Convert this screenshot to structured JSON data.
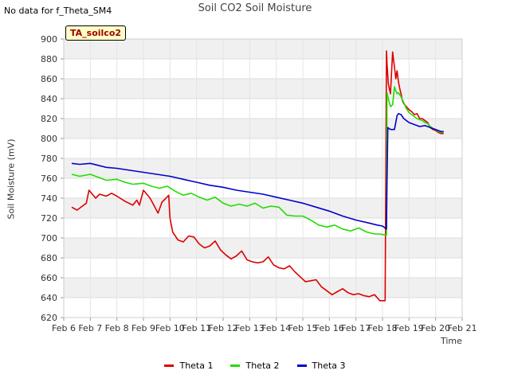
{
  "no_data_note": "No data for f_Theta_SM4",
  "badge_label": "TA_soilco2",
  "chart_data": {
    "type": "line",
    "title": "Soil CO2 Soil Moisture",
    "xlabel": "Time",
    "ylabel": "Soil Moisture (mV)",
    "ylim": [
      620,
      900
    ],
    "yticks": [
      620,
      640,
      660,
      680,
      700,
      720,
      740,
      760,
      780,
      800,
      820,
      840,
      860,
      880,
      900
    ],
    "xlim": [
      6,
      21
    ],
    "xticks": [
      6,
      7,
      8,
      9,
      10,
      11,
      12,
      13,
      14,
      15,
      16,
      17,
      18,
      19,
      20,
      21
    ],
    "xtick_labels": [
      "Feb 6",
      "Feb 7",
      "Feb 8",
      "Feb 9",
      "Feb 10",
      "Feb 11",
      "Feb 12",
      "Feb 13",
      "Feb 14",
      "Feb 15",
      "Feb 16",
      "Feb 17",
      "Feb 18",
      "Feb 19",
      "Feb 20",
      "Feb 21"
    ],
    "grid": true,
    "legend_position": "bottom",
    "series": [
      {
        "name": "Theta 1",
        "color": "#dd0000",
        "x": [
          6.3,
          6.5,
          6.8,
          6.85,
          6.95,
          7.2,
          7.35,
          7.6,
          7.8,
          8.0,
          8.3,
          8.6,
          8.75,
          8.85,
          9.0,
          9.25,
          9.45,
          9.55,
          9.7,
          9.85,
          9.95,
          10.0,
          10.1,
          10.3,
          10.5,
          10.7,
          10.9,
          11.1,
          11.3,
          11.5,
          11.7,
          11.9,
          12.1,
          12.3,
          12.5,
          12.7,
          12.9,
          13.1,
          13.3,
          13.5,
          13.7,
          13.9,
          14.1,
          14.3,
          14.5,
          14.7,
          14.9,
          15.1,
          15.3,
          15.5,
          15.7,
          15.9,
          16.1,
          16.3,
          16.5,
          16.7,
          16.9,
          17.1,
          17.3,
          17.5,
          17.7,
          17.9,
          18.1,
          18.15,
          18.17,
          18.22,
          18.3,
          18.38,
          18.45,
          18.5,
          18.55,
          18.6,
          18.65,
          18.7,
          18.75,
          18.8,
          18.9,
          19.0,
          19.1,
          19.2,
          19.3,
          19.4,
          19.5,
          19.6,
          19.7,
          19.8,
          19.9,
          20.0,
          20.1,
          20.2,
          20.3
        ],
        "y": [
          731,
          728,
          734,
          735,
          748,
          740,
          744,
          742,
          745,
          742,
          737,
          733,
          738,
          733,
          748,
          740,
          730,
          725,
          736,
          740,
          743,
          720,
          706,
          698,
          696,
          702,
          701,
          694,
          690,
          692,
          697,
          688,
          683,
          679,
          682,
          687,
          678,
          676,
          675,
          676,
          681,
          673,
          670,
          669,
          672,
          666,
          661,
          656,
          657,
          658,
          651,
          647,
          643,
          646,
          649,
          645,
          643,
          644,
          642,
          641,
          643,
          637,
          637,
          888,
          875,
          855,
          845,
          887,
          872,
          860,
          868,
          857,
          850,
          845,
          838,
          835,
          832,
          829,
          827,
          824,
          825,
          820,
          820,
          818,
          816,
          811,
          809,
          808,
          806,
          805,
          805
        ]
      },
      {
        "name": "Theta 2",
        "color": "#22dd00",
        "x": [
          6.3,
          6.6,
          7.0,
          7.3,
          7.6,
          8.0,
          8.3,
          8.6,
          9.0,
          9.3,
          9.6,
          9.9,
          10.2,
          10.5,
          10.8,
          11.1,
          11.4,
          11.7,
          12.0,
          12.3,
          12.6,
          12.9,
          13.2,
          13.5,
          13.8,
          14.1,
          14.4,
          14.7,
          15.0,
          15.3,
          15.6,
          15.9,
          16.2,
          16.5,
          16.8,
          17.1,
          17.4,
          17.7,
          17.9,
          18.1,
          18.15,
          18.17,
          18.22,
          18.3,
          18.38,
          18.45,
          18.5,
          18.55,
          18.6,
          18.7,
          18.8,
          18.9,
          19.0,
          19.1,
          19.2,
          19.3,
          19.4,
          19.5,
          19.6,
          19.7,
          19.8,
          19.9,
          20.0,
          20.1,
          20.2,
          20.3
        ],
        "y": [
          764,
          762,
          764,
          761,
          758,
          759,
          756,
          754,
          755,
          752,
          750,
          752,
          747,
          743,
          745,
          741,
          738,
          741,
          735,
          732,
          734,
          732,
          735,
          730,
          732,
          731,
          723,
          722,
          722,
          718,
          713,
          711,
          713,
          709,
          707,
          710,
          706,
          704,
          704,
          703,
          703,
          846,
          840,
          832,
          834,
          852,
          848,
          845,
          846,
          842,
          836,
          830,
          826,
          824,
          822,
          820,
          819,
          818,
          816,
          815,
          812,
          810,
          809,
          807,
          806,
          806
        ]
      },
      {
        "name": "Theta 3",
        "color": "#0000cc",
        "x": [
          6.3,
          6.6,
          7.0,
          7.3,
          7.6,
          8.0,
          8.5,
          9.0,
          9.5,
          10.0,
          10.5,
          11.0,
          11.5,
          12.0,
          12.5,
          13.0,
          13.5,
          14.0,
          14.5,
          15.0,
          15.5,
          16.0,
          16.5,
          17.0,
          17.5,
          17.8,
          18.0,
          18.1,
          18.15,
          18.17,
          18.2,
          18.25,
          18.3,
          18.4,
          18.45,
          18.55,
          18.6,
          18.7,
          18.8,
          18.9,
          19.0,
          19.2,
          19.4,
          19.6,
          19.8,
          20.0,
          20.1,
          20.2,
          20.3
        ],
        "y": [
          775,
          774,
          775,
          773,
          771,
          770,
          768,
          766,
          764,
          762,
          759,
          756,
          753,
          751,
          748,
          746,
          744,
          741,
          738,
          735,
          731,
          727,
          722,
          718,
          715,
          713,
          712,
          710,
          709,
          760,
          811,
          810,
          809,
          809,
          809,
          823,
          825,
          824,
          820,
          818,
          816,
          814,
          812,
          813,
          811,
          809,
          808,
          807,
          807
        ]
      }
    ]
  }
}
